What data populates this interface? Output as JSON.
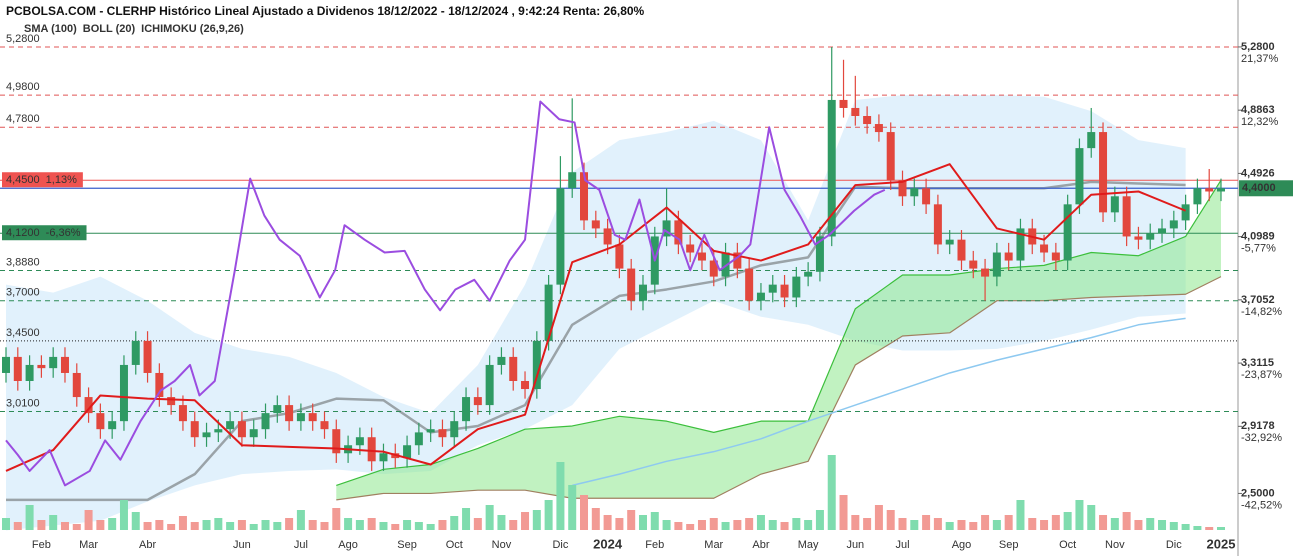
{
  "chart_data": {
    "type": "candlestick",
    "title": "PCBOLSA.COM - CLERHP Histórico Lineal Ajustado a Dividenos 18/12/2022 - 18/12/2024 , 9:42:24 Renta: 26,80%",
    "legend": [
      {
        "name": "SMA (100)",
        "color": "#8ec9f0"
      },
      {
        "name": "BOLL (20)",
        "color": "#c4c4c4"
      },
      {
        "name": "ICHIMOKU (26,9,26)",
        "color": "#7d98ad"
      }
    ],
    "ylim": [
      2.21,
      5.51
    ],
    "vlim": [
      0,
      100
    ],
    "up_color": "#2f9a63",
    "down_color": "#e2473d",
    "vol_up_color": "#7fdcae",
    "vol_down_color": "#f29a94",
    "categories": [
      null,
      null,
      null,
      "Feb",
      null,
      null,
      null,
      "Mar",
      null,
      null,
      null,
      null,
      "Abr",
      null,
      null,
      null,
      null,
      null,
      null,
      null,
      "Jun",
      null,
      null,
      null,
      null,
      "Jul",
      null,
      null,
      null,
      "Ago",
      null,
      null,
      null,
      null,
      "Sep",
      null,
      null,
      null,
      "Oct",
      null,
      null,
      null,
      "Nov",
      null,
      null,
      null,
      null,
      "Dic",
      null,
      null,
      null,
      "2024",
      null,
      null,
      null,
      "Feb",
      null,
      null,
      null,
      null,
      "Mar",
      null,
      null,
      null,
      "Abr",
      null,
      null,
      null,
      "May",
      null,
      null,
      null,
      "Jun",
      null,
      null,
      null,
      "Jul",
      null,
      null,
      null,
      null,
      "Ago",
      null,
      null,
      null,
      "Sep",
      null,
      null,
      null,
      null,
      "Oct",
      null,
      null,
      null,
      "Nov",
      null,
      null,
      null,
      null,
      "Dic",
      null,
      null,
      null,
      "2025"
    ],
    "open": [
      3.25,
      3.35,
      3.2,
      3.3,
      3.28,
      3.35,
      3.25,
      3.1,
      3.0,
      2.9,
      2.95,
      3.3,
      3.45,
      3.25,
      3.1,
      3.05,
      2.95,
      2.85,
      2.88,
      2.9,
      2.95,
      2.85,
      2.9,
      3.0,
      3.05,
      2.95,
      3.0,
      2.95,
      2.9,
      2.75,
      2.8,
      2.85,
      2.7,
      2.75,
      2.72,
      2.8,
      2.88,
      2.9,
      2.85,
      2.95,
      3.1,
      3.05,
      3.3,
      3.35,
      3.2,
      3.15,
      3.45,
      3.8,
      4.4,
      4.5,
      4.2,
      4.15,
      4.05,
      3.9,
      3.7,
      3.8,
      4.1,
      4.2,
      4.05,
      4.0,
      3.95,
      3.85,
      4.0,
      3.9,
      3.7,
      3.75,
      3.8,
      3.72,
      3.85,
      3.88,
      4.1,
      4.95,
      4.9,
      4.85,
      4.8,
      4.75,
      4.45,
      4.35,
      4.4,
      4.3,
      4.05,
      4.08,
      3.95,
      3.9,
      3.85,
      4.0,
      3.95,
      4.15,
      4.05,
      4.0,
      3.95,
      4.3,
      4.65,
      4.75,
      4.25,
      4.35,
      4.1,
      4.08,
      4.12,
      4.15,
      4.2,
      4.3,
      4.4,
      4.38
    ],
    "high": [
      3.41,
      3.41,
      3.36,
      3.36,
      3.41,
      3.41,
      3.31,
      3.16,
      3.06,
      3.01,
      3.36,
      3.51,
      3.51,
      3.31,
      3.16,
      3.11,
      3.01,
      2.94,
      2.96,
      3.01,
      3.01,
      2.96,
      3.06,
      3.11,
      3.11,
      3.06,
      3.06,
      3.01,
      2.96,
      2.86,
      2.91,
      2.91,
      2.81,
      2.81,
      2.86,
      2.94,
      2.96,
      2.96,
      3.01,
      3.16,
      3.16,
      3.36,
      3.41,
      3.41,
      3.26,
      3.51,
      3.86,
      4.6,
      4.96,
      4.56,
      4.26,
      4.21,
      4.11,
      3.96,
      3.86,
      4.16,
      4.4,
      4.26,
      4.11,
      4.06,
      4.01,
      4.06,
      4.06,
      3.96,
      3.81,
      3.86,
      3.86,
      3.91,
      3.94,
      4.16,
      5.28,
      5.2,
      5.1,
      4.91,
      4.86,
      4.81,
      4.51,
      4.46,
      4.46,
      4.36,
      4.14,
      4.14,
      4.01,
      3.96,
      4.06,
      4.06,
      4.21,
      4.21,
      4.11,
      4.06,
      4.36,
      4.71,
      4.9,
      4.81,
      4.41,
      4.41,
      4.16,
      4.18,
      4.21,
      4.26,
      4.36,
      4.46,
      4.52,
      4.46
    ],
    "low": [
      3.19,
      3.14,
      3.14,
      3.22,
      3.22,
      3.19,
      3.04,
      2.94,
      2.84,
      2.84,
      2.89,
      3.24,
      3.19,
      3.04,
      2.99,
      2.89,
      2.79,
      2.79,
      2.82,
      2.84,
      2.79,
      2.79,
      2.84,
      2.94,
      2.89,
      2.89,
      2.89,
      2.84,
      2.69,
      2.69,
      2.74,
      2.64,
      2.64,
      2.66,
      2.66,
      2.74,
      2.82,
      2.79,
      2.79,
      2.89,
      2.99,
      2.99,
      3.24,
      3.14,
      3.09,
      3.09,
      3.39,
      3.74,
      4.34,
      4.14,
      4.09,
      3.99,
      3.84,
      3.64,
      3.64,
      3.74,
      4.04,
      3.99,
      3.94,
      3.89,
      3.79,
      3.79,
      3.84,
      3.64,
      3.64,
      3.69,
      3.66,
      3.66,
      3.79,
      3.82,
      4.04,
      4.84,
      4.79,
      4.74,
      4.69,
      4.39,
      4.29,
      4.29,
      4.24,
      3.99,
      3.99,
      3.89,
      3.84,
      3.7,
      3.79,
      3.89,
      3.89,
      3.99,
      3.94,
      3.89,
      3.89,
      4.24,
      4.59,
      4.19,
      4.19,
      4.04,
      4.02,
      4.02,
      4.06,
      4.09,
      4.14,
      4.24,
      4.32,
      4.32
    ],
    "close": [
      3.35,
      3.2,
      3.3,
      3.28,
      3.35,
      3.25,
      3.1,
      3.0,
      2.9,
      2.95,
      3.3,
      3.45,
      3.25,
      3.1,
      3.05,
      2.95,
      2.85,
      2.88,
      2.9,
      2.95,
      2.85,
      2.9,
      3.0,
      3.05,
      2.95,
      3.0,
      2.95,
      2.9,
      2.75,
      2.8,
      2.85,
      2.7,
      2.75,
      2.72,
      2.8,
      2.88,
      2.9,
      2.85,
      2.95,
      3.1,
      3.05,
      3.3,
      3.35,
      3.2,
      3.15,
      3.45,
      3.8,
      4.4,
      4.5,
      4.2,
      4.15,
      4.05,
      3.9,
      3.7,
      3.8,
      4.1,
      4.2,
      4.05,
      4.0,
      3.95,
      3.85,
      4.0,
      3.9,
      3.7,
      3.75,
      3.8,
      3.72,
      3.85,
      3.88,
      4.1,
      4.95,
      4.9,
      4.85,
      4.8,
      4.75,
      4.45,
      4.35,
      4.4,
      4.3,
      4.05,
      4.08,
      3.95,
      3.9,
      3.85,
      4.0,
      3.95,
      4.15,
      4.05,
      4.0,
      3.95,
      4.3,
      4.65,
      4.75,
      4.25,
      4.35,
      4.1,
      4.08,
      4.12,
      4.15,
      4.2,
      4.3,
      4.4,
      4.38,
      4.4
    ],
    "volume": [
      12,
      8,
      25,
      10,
      15,
      8,
      6,
      20,
      10,
      12,
      30,
      18,
      8,
      10,
      6,
      14,
      8,
      10,
      12,
      8,
      10,
      6,
      10,
      8,
      12,
      20,
      10,
      8,
      22,
      12,
      10,
      12,
      8,
      6,
      10,
      8,
      6,
      10,
      14,
      22,
      12,
      25,
      15,
      10,
      18,
      20,
      30,
      68,
      45,
      35,
      22,
      15,
      12,
      20,
      15,
      18,
      10,
      8,
      6,
      10,
      12,
      8,
      10,
      12,
      15,
      10,
      8,
      12,
      10,
      20,
      75,
      35,
      15,
      12,
      25,
      20,
      12,
      10,
      15,
      12,
      8,
      10,
      8,
      15,
      10,
      15,
      30,
      12,
      10,
      15,
      18,
      30,
      25,
      15,
      12,
      18,
      10,
      12,
      10,
      8,
      6,
      4,
      3,
      3
    ],
    "indicators": {
      "x": [
        0,
        4,
        8,
        12,
        16,
        20,
        24,
        28,
        32,
        36,
        40,
        44,
        48,
        52,
        56,
        60,
        64,
        68,
        72,
        76,
        80,
        84,
        88,
        92,
        96,
        100,
        103
      ],
      "boll_upper": [
        3.8,
        3.75,
        3.85,
        3.7,
        3.5,
        3.4,
        3.35,
        3.25,
        3.1,
        3.0,
        3.3,
        3.8,
        4.5,
        4.7,
        4.75,
        4.82,
        4.7,
        4.2,
        4.95,
        4.98,
        4.98,
        4.98,
        4.97,
        4.88,
        4.7,
        4.65,
        null
      ],
      "boll_lower": [
        2.27,
        2.3,
        2.33,
        2.45,
        2.55,
        2.62,
        2.64,
        2.65,
        2.62,
        2.64,
        2.8,
        2.9,
        3.05,
        3.4,
        3.55,
        3.7,
        3.6,
        3.55,
        3.45,
        3.39,
        3.39,
        3.4,
        3.45,
        3.52,
        3.6,
        3.62,
        null
      ],
      "boll_color": "#a9d6f5",
      "span_a": [
        null,
        null,
        null,
        null,
        null,
        null,
        null,
        2.55,
        2.65,
        2.68,
        2.78,
        2.9,
        2.92,
        2.98,
        2.95,
        2.88,
        2.95,
        2.95,
        3.65,
        3.86,
        3.86,
        3.9,
        3.92,
        4.0,
        3.98,
        4.1,
        4.45
      ],
      "span_b": [
        null,
        null,
        null,
        null,
        null,
        null,
        null,
        2.46,
        2.5,
        2.5,
        2.52,
        2.52,
        2.47,
        2.47,
        2.47,
        2.47,
        2.62,
        2.7,
        3.3,
        3.48,
        3.5,
        3.7,
        3.7,
        3.72,
        3.73,
        3.74,
        3.85
      ],
      "span_a_color": "#3cbf3c",
      "span_b_color": "#a08060",
      "cloud_color": "#8ee88e",
      "sma": [
        null,
        null,
        null,
        null,
        null,
        null,
        null,
        null,
        null,
        null,
        null,
        null,
        2.55,
        2.62,
        2.7,
        2.76,
        2.84,
        2.95,
        3.05,
        3.15,
        3.25,
        3.33,
        3.4,
        3.47,
        3.55,
        3.59,
        null
      ],
      "sma_color": "#8ec9f0",
      "tenkan": [
        2.64,
        2.77,
        3.11,
        3.09,
        3.08,
        2.8,
        2.79,
        2.78,
        2.76,
        2.68,
        2.9,
        2.99,
        3.94,
        4.05,
        4.28,
        4.01,
        3.95,
        4.05,
        4.42,
        4.44,
        4.55,
        4.15,
        4.08,
        4.36,
        4.38,
        4.26,
        null
      ],
      "tenkan_color": "#e01b1b",
      "kijun": [
        2.46,
        2.46,
        2.46,
        2.46,
        2.62,
        2.95,
        3.0,
        3.09,
        3.08,
        2.88,
        2.92,
        3.05,
        3.55,
        3.73,
        3.77,
        3.82,
        3.92,
        3.97,
        4.41,
        4.4,
        4.4,
        4.4,
        4.4,
        4.44,
        4.43,
        4.42,
        null
      ],
      "kijun_color": "#9aa3a8"
    },
    "oscillator": {
      "x": [
        0,
        1.0,
        2.0,
        3.7,
        5.0,
        7.1,
        8.4,
        9.7,
        11.4,
        13.1,
        14.3,
        15.6,
        16.4,
        17.7,
        19.4,
        20.7,
        21.9,
        23.2,
        24.9,
        26.6,
        27.9,
        28.7,
        30.4,
        32.1,
        33.8,
        35.5,
        36.8,
        38.1,
        39.7,
        41.0,
        42.7,
        44.0,
        45.3,
        46.9,
        48.2,
        49.1,
        50.3,
        51.6,
        52.5,
        53.7,
        55.0,
        55.8,
        57.1,
        58.0,
        59.2,
        60.5,
        62.2,
        63.1,
        64.7,
        66.0,
        67.3,
        68.6,
        69.8,
        71.9,
        73.6,
        74.5
      ],
      "values": [
        2.83,
        2.74,
        2.64,
        2.77,
        2.55,
        2.64,
        2.83,
        2.71,
        2.95,
        3.14,
        3.2,
        3.3,
        3.11,
        3.2,
        3.89,
        4.46,
        4.23,
        4.08,
        3.98,
        3.72,
        3.89,
        4.17,
        4.08,
        4.0,
        4.01,
        3.77,
        3.64,
        3.77,
        3.83,
        3.7,
        3.95,
        4.08,
        4.94,
        4.83,
        4.81,
        4.45,
        4.39,
        4.11,
        4.08,
        4.33,
        3.95,
        4.14,
        4.08,
        3.89,
        4.11,
        3.89,
        3.98,
        4.05,
        4.78,
        4.39,
        4.23,
        4.05,
        4.11,
        4.26,
        4.36,
        4.39
      ],
      "color": "#9b4de0"
    },
    "levels": [
      {
        "value": 5.28,
        "label": "5,2800",
        "color": "#e05555",
        "dash": "5,4"
      },
      {
        "value": 4.98,
        "label": "4,9800",
        "color": "#e05555",
        "dash": "5,4"
      },
      {
        "value": 4.78,
        "label": "4,7800",
        "color": "#e05555",
        "dash": "5,4"
      },
      {
        "value": 4.45,
        "label": "4,4500",
        "note": "1,13%",
        "color": "#ef5350",
        "box": true
      },
      {
        "value": 4.12,
        "label": "4,1200",
        "note": "-6,36%",
        "color": "#2e8b57",
        "box": true
      },
      {
        "value": 3.888,
        "label": "3,8880",
        "color": "#2e8b57",
        "dash": "5,4"
      },
      {
        "value": 3.7,
        "label": "3,7000",
        "color": "#2e8b57",
        "dash": "5,4"
      },
      {
        "value": 3.45,
        "label": "3,4500",
        "color": "#222222",
        "dash": "1,2"
      },
      {
        "value": 3.01,
        "label": "3,0100",
        "color": "#2e8b57",
        "dash": "5,4"
      }
    ],
    "right_ticks": [
      {
        "value": 5.28,
        "label": "5,2800",
        "pct": "21,37%"
      },
      {
        "value": 4.8863,
        "label": "4,8863",
        "pct": "12,32%"
      },
      {
        "value": 4.4926,
        "label": "4,4926",
        "pct": "3,27%"
      },
      {
        "value": 4.0989,
        "label": "4,0989",
        "pct": "-5,77%"
      },
      {
        "value": 3.7052,
        "label": "3,7052",
        "pct": "-14,82%"
      },
      {
        "value": 3.3115,
        "label": "3,3115",
        "pct": "-23,87%"
      },
      {
        "value": 2.9178,
        "label": "2,9178",
        "pct": "-32,92%"
      },
      {
        "value": 2.5,
        "label": "2,5000",
        "pct": "-42,52%"
      }
    ],
    "pct_up_color": "#2e9a55",
    "pct_down_color": "#e53935",
    "last_price": {
      "value": 4.4,
      "label": "4,4000",
      "color": "#2e8b57",
      "line_color": "#3a5fcd"
    }
  }
}
